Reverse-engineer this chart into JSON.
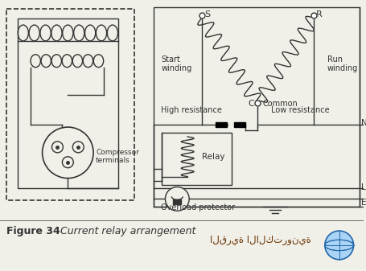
{
  "bg_color": "#f0efe8",
  "line_color": "#333333",
  "title": "Figure 34",
  "subtitle": "  Current relay arrangement",
  "arabic_text": "القرية الالكترونية",
  "labels": {
    "S": "S",
    "R": "R",
    "C": "C",
    "N": "N",
    "L": "L",
    "E": "E",
    "start_winding": "Start\nwinding",
    "run_winding": "Run\nwinding",
    "common": "Common",
    "high_resistance": "High resistance",
    "low_resistance": "Low resistance",
    "relay": "Relay",
    "overload": "Overload protector",
    "compressor": "Compressor\nterminals"
  }
}
